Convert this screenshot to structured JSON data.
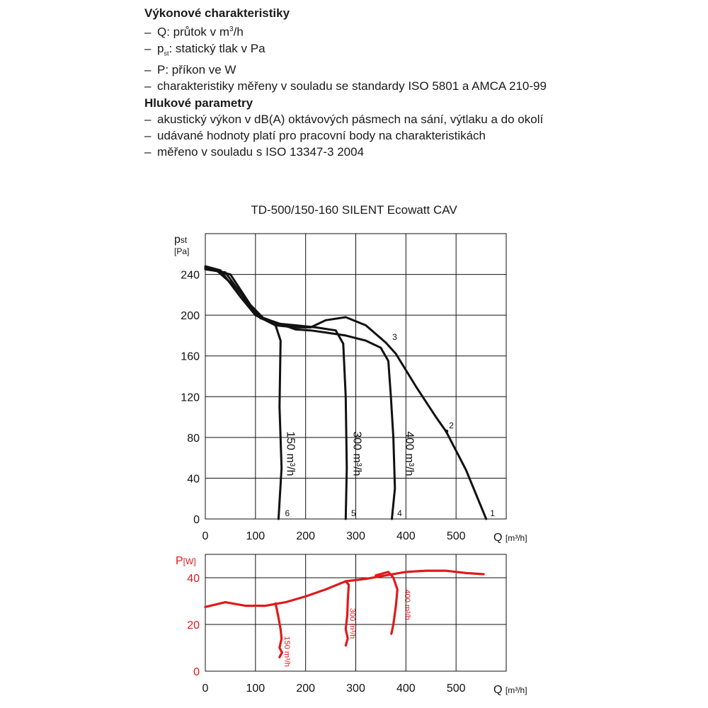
{
  "text": {
    "heading1": "Výkonové charakteristiky",
    "q_label": "Q: průtok v m",
    "q_unit_sup": "3",
    "q_unit_tail": "/h",
    "p_label": "p",
    "p_sub": "st",
    "p_rest": ": statický tlak v Pa",
    "power_label": "P: příkon ve W",
    "standards": "charakteristiky měřeny v souladu se standardy ISO 5801 a AMCA 210-99",
    "heading2": "Hlukové parametry",
    "noise1": "akustický výkon v dB(A) oktávových pásmech na sání, výtlaku a do okolí",
    "noise2": "udávané hodnoty platí pro pracovní body na charakteristikách",
    "noise3": "měřeno v souladu s ISO 13347-3 2004"
  },
  "chart_data": [
    {
      "type": "line",
      "title": "TD-500/150-160 SILENT Ecowatt CAV",
      "ylabel": "pst",
      "yunit": "[Pa]",
      "xlabel": "Q",
      "xunit": "[m3/h]",
      "xlim": [
        0,
        600
      ],
      "ylim": [
        0,
        280
      ],
      "xticks": [
        0,
        100,
        200,
        300,
        400,
        500
      ],
      "yticks": [
        0,
        40,
        80,
        120,
        160,
        200,
        240
      ],
      "grid": true,
      "colors": {
        "curve": "#111111"
      },
      "series": [
        {
          "name": "",
          "x": [
            0,
            20,
            50,
            70,
            100,
            140,
            180,
            210,
            240,
            280,
            320,
            360,
            380,
            420,
            460,
            480,
            520,
            560
          ],
          "y": [
            247,
            245,
            232,
            218,
            200,
            190,
            188,
            188,
            195,
            198,
            190,
            173,
            162,
            130,
            100,
            86,
            48,
            0
          ]
        },
        {
          "name": "",
          "x": [
            0,
            30,
            70,
            100,
            140,
            180,
            210,
            240,
            280,
            320,
            350,
            365,
            370,
            375,
            378,
            372
          ],
          "y": [
            248,
            244,
            218,
            200,
            193,
            186,
            185,
            183,
            180,
            175,
            168,
            155,
            120,
            80,
            30,
            0
          ]
        },
        {
          "name": "",
          "x": [
            0,
            40,
            80,
            110,
            140,
            180,
            220,
            260,
            275,
            280,
            282,
            280
          ],
          "y": [
            245,
            242,
            215,
            197,
            192,
            190,
            188,
            185,
            172,
            120,
            50,
            0
          ]
        },
        {
          "name": "",
          "x": [
            0,
            50,
            90,
            120,
            140,
            150,
            148,
            152,
            146
          ],
          "y": [
            246,
            240,
            210,
            195,
            190,
            175,
            110,
            50,
            0
          ]
        }
      ],
      "curve_labels": [
        "150 m³/h",
        "300 m³/h",
        "400 m³/h"
      ],
      "point_labels": [
        "1",
        "2",
        "3",
        "4",
        "5",
        "6"
      ]
    },
    {
      "type": "line",
      "ylabel": "P",
      "yunit": "[W]",
      "xlabel": "Q",
      "xunit": "[m3/h]",
      "xlim": [
        0,
        600
      ],
      "ylim": [
        0,
        50
      ],
      "xticks": [
        0,
        100,
        200,
        300,
        400,
        500
      ],
      "yticks": [
        0,
        20,
        40
      ],
      "grid": true,
      "colors": {
        "curve": "#e01a1a"
      },
      "series": [
        {
          "name": "",
          "x": [
            0,
            40,
            80,
            120,
            160,
            200,
            240,
            280,
            320,
            360,
            400,
            440,
            480,
            520,
            555
          ],
          "y": [
            27.5,
            29.5,
            28,
            28,
            29.5,
            32,
            35,
            38.5,
            39.5,
            41,
            42.5,
            43,
            43,
            42,
            41.5
          ]
        },
        {
          "name": "",
          "x": [
            280,
            286,
            284,
            283,
            280,
            284,
            280
          ],
          "y": [
            38.5,
            37,
            30,
            24,
            18,
            14,
            11
          ]
        },
        {
          "name": "",
          "x": [
            340,
            365,
            375,
            383,
            380,
            375,
            371
          ],
          "y": [
            41,
            42.5,
            40,
            35,
            28,
            20,
            16
          ]
        },
        {
          "name": "",
          "x": [
            140,
            145,
            150,
            152,
            148,
            153,
            148
          ],
          "y": [
            29,
            24,
            18,
            14,
            10,
            8,
            6
          ]
        }
      ],
      "curve_labels": [
        "150 m³/h",
        "300 m³/h",
        "400 m³/h"
      ]
    }
  ]
}
